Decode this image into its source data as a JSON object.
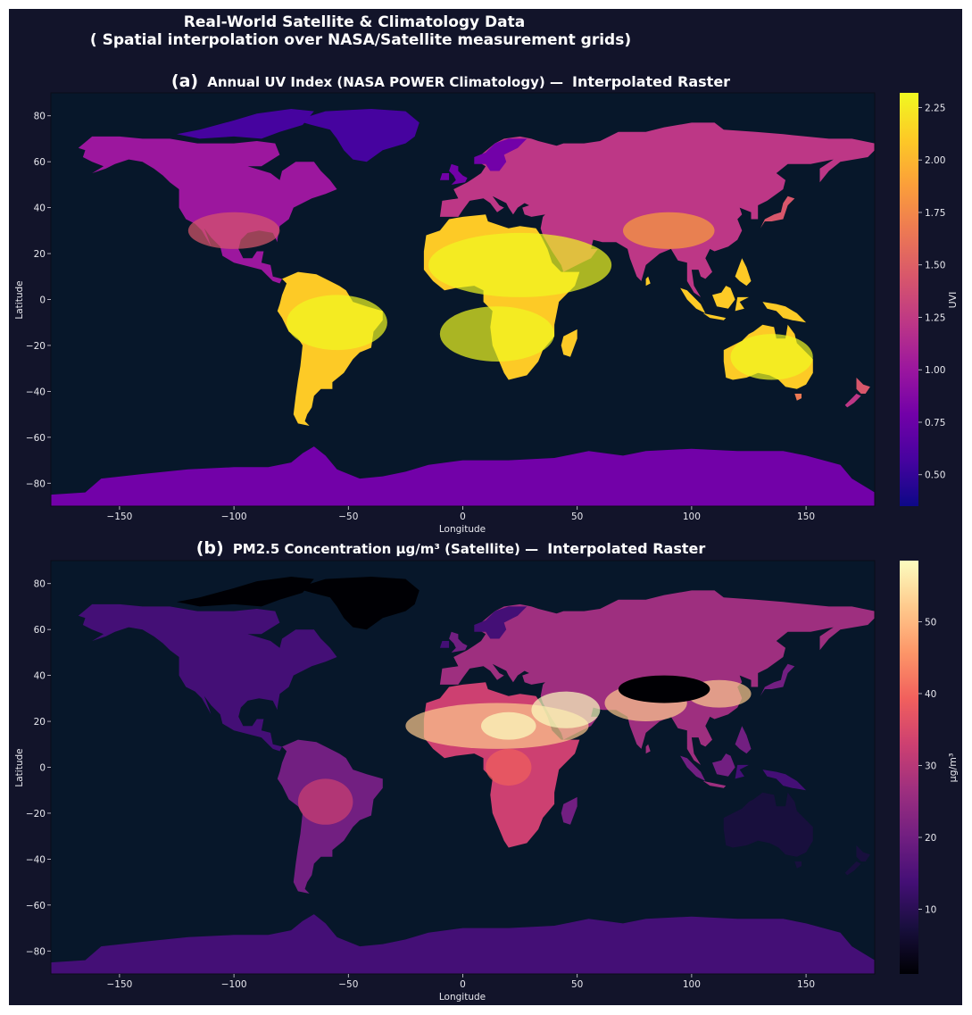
{
  "figure": {
    "title_line1": "Real-World Satellite & Climatology Data",
    "title_line2": "( Spatial interpolation over NASA/Satellite measurement grids)"
  },
  "colors": {
    "background": "#12142a",
    "ocean": "#07172a",
    "plasma": [
      "#0d0887",
      "#46039f",
      "#7201a8",
      "#9c179e",
      "#bd3786",
      "#d8576b",
      "#ed7953",
      "#fb9f3a",
      "#fdca26",
      "#f0f921"
    ],
    "magma": [
      "#000004",
      "#180f3d",
      "#440f76",
      "#721f81",
      "#9e2f7f",
      "#cd4071",
      "#f1605d",
      "#fd9668",
      "#feca8d",
      "#fcfdbf"
    ]
  },
  "chart_data": [
    {
      "type": "heatmap",
      "panel_letter": "(a)",
      "title": "Annual UV Index (NASA POWER Climatology) —",
      "title_suffix": "Interpolated Raster",
      "xlabel": "Longitude",
      "ylabel": "Latitude",
      "xlim": [
        -180,
        180
      ],
      "ylim": [
        -90,
        90
      ],
      "xticks": [
        -150,
        -100,
        -50,
        0,
        50,
        100,
        150
      ],
      "xtick_labels": [
        "−150",
        "−100",
        "−50",
        "0",
        "50",
        "100",
        "150"
      ],
      "yticks": [
        80,
        60,
        40,
        20,
        0,
        -20,
        -40,
        -60,
        -80
      ],
      "ytick_labels": [
        "80",
        "60",
        "40",
        "20",
        "0",
        "−20",
        "−40",
        "−60",
        "−80"
      ],
      "colormap": "plasma",
      "colorbar_label": "UVI",
      "colorbar_range": [
        0.35,
        2.32
      ],
      "colorbar_ticks": [
        2.25,
        2.0,
        1.75,
        1.5,
        1.25,
        1.0,
        0.75,
        0.5
      ],
      "colorbar_tick_labels": [
        "2.25",
        "2.00",
        "1.75",
        "1.50",
        "1.25",
        "1.00",
        "0.75",
        "0.50"
      ],
      "land_only": true
    },
    {
      "type": "heatmap",
      "panel_letter": "(b)",
      "title": "PM2.5 Concentration µg/m³ (Satellite) —",
      "title_suffix": "Interpolated Raster",
      "xlabel": "Longitude",
      "ylabel": "Latitude",
      "xlim": [
        -180,
        180
      ],
      "ylim": [
        -90,
        90
      ],
      "xticks": [
        -150,
        -100,
        -50,
        0,
        50,
        100,
        150
      ],
      "xtick_labels": [
        "−150",
        "−100",
        "−50",
        "0",
        "50",
        "100",
        "150"
      ],
      "yticks": [
        80,
        60,
        40,
        20,
        0,
        -20,
        -40,
        -60,
        -80
      ],
      "ytick_labels": [
        "80",
        "60",
        "40",
        "20",
        "0",
        "−20",
        "−40",
        "−60",
        "−80"
      ],
      "colormap": "magma",
      "colorbar_label": "µg/m³",
      "colorbar_range": [
        1,
        58.5
      ],
      "colorbar_ticks": [
        50,
        40,
        30,
        20,
        10
      ],
      "colorbar_tick_labels": [
        "50",
        "40",
        "30",
        "20",
        "10"
      ],
      "land_only": true
    }
  ]
}
